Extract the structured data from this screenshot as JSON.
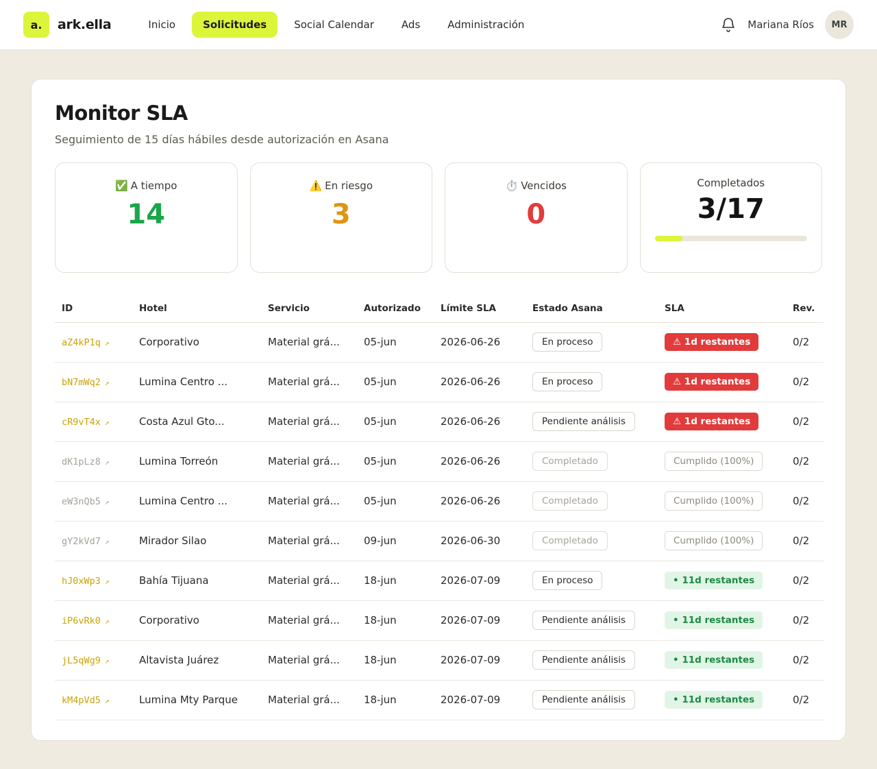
{
  "brand": {
    "badge": "a.",
    "name": "ark.ella"
  },
  "nav": [
    {
      "label": "Inicio",
      "active": false
    },
    {
      "label": "Solicitudes",
      "active": true
    },
    {
      "label": "Social Calendar",
      "active": false
    },
    {
      "label": "Ads",
      "active": false
    },
    {
      "label": "Administración",
      "active": false
    }
  ],
  "user": {
    "name": "Mariana Ríos",
    "initials": "MR"
  },
  "page": {
    "title": "Monitor SLA",
    "subtitle": "Seguimiento de 15 días hábiles desde autorización en Asana"
  },
  "stats": {
    "on_time": {
      "icon": "✅",
      "label": "A tiempo",
      "value": "14"
    },
    "at_risk": {
      "icon": "⚠️",
      "label": "En riesgo",
      "value": "3"
    },
    "overdue": {
      "icon": "⏱️",
      "label": "Vencidos",
      "value": "0"
    },
    "completed": {
      "label": "Completados",
      "value": "3/17",
      "progress": 0.18
    }
  },
  "table": {
    "headers": [
      "ID",
      "Hotel",
      "Servicio",
      "Autorizado",
      "Límite SLA",
      "Estado Asana",
      "SLA",
      "Rev."
    ],
    "rows": [
      {
        "id": "aZ4kP1q",
        "hotel": "Corporativo",
        "service": "Material grá...",
        "authorized": "05-jun",
        "limit": "2026-06-26",
        "state": "En proceso",
        "sla": "⚠ 1d restantes",
        "sla_kind": "red",
        "rev": "0/2",
        "muted": false
      },
      {
        "id": "bN7mWq2",
        "hotel": "Lumina Centro ...",
        "service": "Material grá...",
        "authorized": "05-jun",
        "limit": "2026-06-26",
        "state": "En proceso",
        "sla": "⚠ 1d restantes",
        "sla_kind": "red",
        "rev": "0/2",
        "muted": false
      },
      {
        "id": "cR9vT4x",
        "hotel": "Costa Azul Gto...",
        "service": "Material grá...",
        "authorized": "05-jun",
        "limit": "2026-06-26",
        "state": "Pendiente análisis",
        "sla": "⚠ 1d restantes",
        "sla_kind": "red",
        "rev": "0/2",
        "muted": false
      },
      {
        "id": "dK1pLz8",
        "hotel": "Lumina Torreón",
        "service": "Material grá...",
        "authorized": "05-jun",
        "limit": "2026-06-26",
        "state": "Completado",
        "sla": "Cumplido (100%)",
        "sla_kind": "done",
        "rev": "0/2",
        "muted": true
      },
      {
        "id": "eW3nQb5",
        "hotel": "Lumina Centro ...",
        "service": "Material grá...",
        "authorized": "05-jun",
        "limit": "2026-06-26",
        "state": "Completado",
        "sla": "Cumplido (100%)",
        "sla_kind": "done",
        "rev": "0/2",
        "muted": true
      },
      {
        "id": "gY2kVd7",
        "hotel": "Mirador Silao",
        "service": "Material grá...",
        "authorized": "09-jun",
        "limit": "2026-06-30",
        "state": "Completado",
        "sla": "Cumplido (100%)",
        "sla_kind": "done",
        "rev": "0/2",
        "muted": true
      },
      {
        "id": "hJ0xWp3",
        "hotel": "Bahía Tijuana",
        "service": "Material grá...",
        "authorized": "18-jun",
        "limit": "2026-07-09",
        "state": "En proceso",
        "sla": "• 11d restantes",
        "sla_kind": "green",
        "rev": "0/2",
        "muted": false
      },
      {
        "id": "iP6vRk0",
        "hotel": "Corporativo",
        "service": "Material grá...",
        "authorized": "18-jun",
        "limit": "2026-07-09",
        "state": "Pendiente análisis",
        "sla": "• 11d restantes",
        "sla_kind": "green",
        "rev": "0/2",
        "muted": false
      },
      {
        "id": "jL5qWg9",
        "hotel": "Altavista Juárez",
        "service": "Material grá...",
        "authorized": "18-jun",
        "limit": "2026-07-09",
        "state": "Pendiente análisis",
        "sla": "• 11d restantes",
        "sla_kind": "green",
        "rev": "0/2",
        "muted": false
      },
      {
        "id": "kM4pVd5",
        "hotel": "Lumina Mty Parque",
        "service": "Material grá...",
        "authorized": "18-jun",
        "limit": "2026-07-09",
        "state": "Pendiente análisis",
        "sla": "• 11d restantes",
        "sla_kind": "green",
        "rev": "0/2",
        "muted": false
      }
    ]
  }
}
